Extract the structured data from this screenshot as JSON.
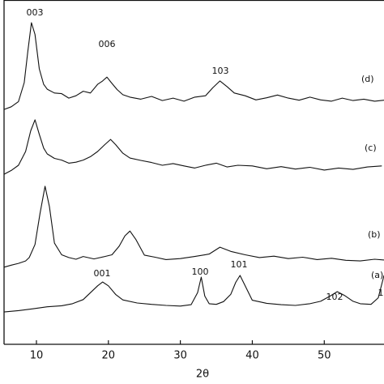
{
  "chart_data": {
    "type": "line",
    "x_label": "2θ",
    "xlim": [
      5.5,
      58.3
    ],
    "ylim": [
      0,
      100
    ],
    "xticks": [
      10,
      20,
      30,
      40,
      50
    ],
    "series": [
      {
        "name": "(d)",
        "color": "#111111",
        "x": [
          5.5,
          6.5,
          7.5,
          8.3,
          8.8,
          9.3,
          9.8,
          10.4,
          11.0,
          11.5,
          12.5,
          13.5,
          14.5,
          15.5,
          16.5,
          17.5,
          18.5,
          19.2,
          19.8,
          20.4,
          21.2,
          22.0,
          23.0,
          24.5,
          26.0,
          27.5,
          29.0,
          30.5,
          32.0,
          33.5,
          34.5,
          35.5,
          36.5,
          37.5,
          39.0,
          40.5,
          42.0,
          43.5,
          45.0,
          46.5,
          48.0,
          49.5,
          51.0,
          52.5,
          54.0,
          55.5,
          57.0,
          58.3
        ],
        "values": [
          68.2,
          69.0,
          70.5,
          76.0,
          85.0,
          93.4,
          90.0,
          80.0,
          75.5,
          74.1,
          73.0,
          72.8,
          71.5,
          72.2,
          73.5,
          73.0,
          75.5,
          76.5,
          77.6,
          76.0,
          74.0,
          72.5,
          71.8,
          71.2,
          72.0,
          70.8,
          71.5,
          70.6,
          71.8,
          72.2,
          74.5,
          76.5,
          74.8,
          73.0,
          72.2,
          71.0,
          71.6,
          72.4,
          71.5,
          70.9,
          71.8,
          71.0,
          70.6,
          71.5,
          70.8,
          71.2,
          70.6,
          70.9
        ]
      },
      {
        "name": "(c)",
        "color": "#111111",
        "x": [
          5.5,
          6.5,
          7.5,
          8.5,
          9.2,
          9.8,
          10.4,
          11.0,
          11.5,
          12.5,
          13.5,
          14.5,
          15.5,
          16.5,
          17.5,
          18.5,
          19.5,
          20.3,
          21.0,
          22.0,
          23.0,
          24.5,
          26.0,
          27.5,
          29.0,
          30.5,
          32.0,
          33.5,
          35.0,
          36.5,
          38.0,
          40.0,
          42.0,
          44.0,
          46.0,
          48.0,
          50.0,
          52.0,
          54.0,
          56.0,
          58.0
        ],
        "values": [
          49.4,
          50.5,
          52.0,
          56.0,
          62.0,
          65.2,
          61.0,
          57.0,
          55.3,
          54.0,
          53.5,
          52.6,
          52.9,
          53.5,
          54.5,
          56.0,
          58.0,
          59.5,
          58.0,
          55.5,
          54.1,
          53.4,
          52.8,
          52.0,
          52.5,
          51.8,
          51.2,
          52.0,
          52.6,
          51.5,
          52.0,
          51.8,
          51.0,
          51.6,
          50.9,
          51.4,
          50.6,
          51.2,
          50.8,
          51.5,
          51.8
        ]
      },
      {
        "name": "(b)",
        "color": "#111111",
        "x": [
          5.5,
          6.5,
          7.5,
          8.5,
          9.0,
          9.8,
          10.5,
          11.2,
          11.8,
          12.5,
          13.5,
          14.5,
          15.5,
          16.5,
          18.0,
          19.5,
          20.5,
          21.5,
          22.3,
          23.0,
          23.8,
          25.0,
          26.5,
          28.0,
          30.0,
          32.0,
          34.0,
          35.5,
          37.0,
          39.0,
          41.0,
          43.0,
          45.0,
          47.0,
          49.0,
          51.0,
          53.0,
          55.0,
          57.0,
          58.3
        ],
        "values": [
          22.4,
          23.0,
          23.5,
          24.2,
          25.2,
          29.0,
          38.0,
          45.9,
          40.0,
          29.4,
          26.0,
          25.2,
          24.7,
          25.5,
          24.8,
          25.5,
          26.0,
          28.5,
          31.5,
          32.9,
          30.5,
          25.9,
          25.3,
          24.6,
          24.9,
          25.5,
          26.2,
          28.2,
          27.0,
          26.0,
          25.2,
          25.6,
          24.9,
          25.3,
          24.6,
          25.0,
          24.4,
          24.2,
          24.7,
          24.5
        ]
      },
      {
        "name": "(a)",
        "color": "#111111",
        "x": [
          5.5,
          7.5,
          9.5,
          11.5,
          13.5,
          15.0,
          16.5,
          17.5,
          18.5,
          19.2,
          20.0,
          21.0,
          22.0,
          24.0,
          26.0,
          28.0,
          30.0,
          31.5,
          32.4,
          32.9,
          33.4,
          34.0,
          35.0,
          36.0,
          37.0,
          37.7,
          38.3,
          39.0,
          40.0,
          42.0,
          44.0,
          46.0,
          48.0,
          49.5,
          50.8,
          51.8,
          52.8,
          54.0,
          55.0,
          56.5,
          57.5,
          58.3
        ],
        "values": [
          9.4,
          9.8,
          10.3,
          10.9,
          11.2,
          11.8,
          13.0,
          15.0,
          17.0,
          18.1,
          17.0,
          14.5,
          12.9,
          12.0,
          11.6,
          11.3,
          11.1,
          11.5,
          15.0,
          19.5,
          14.0,
          11.8,
          11.6,
          12.4,
          14.5,
          18.0,
          20.0,
          17.0,
          12.8,
          11.9,
          11.5,
          11.3,
          11.8,
          12.5,
          14.0,
          15.3,
          14.2,
          12.5,
          11.8,
          11.6,
          13.5,
          20.0
        ]
      }
    ],
    "annotations": [
      "003",
      "006",
      "103",
      "001",
      "100",
      "101",
      "102",
      "1"
    ]
  }
}
